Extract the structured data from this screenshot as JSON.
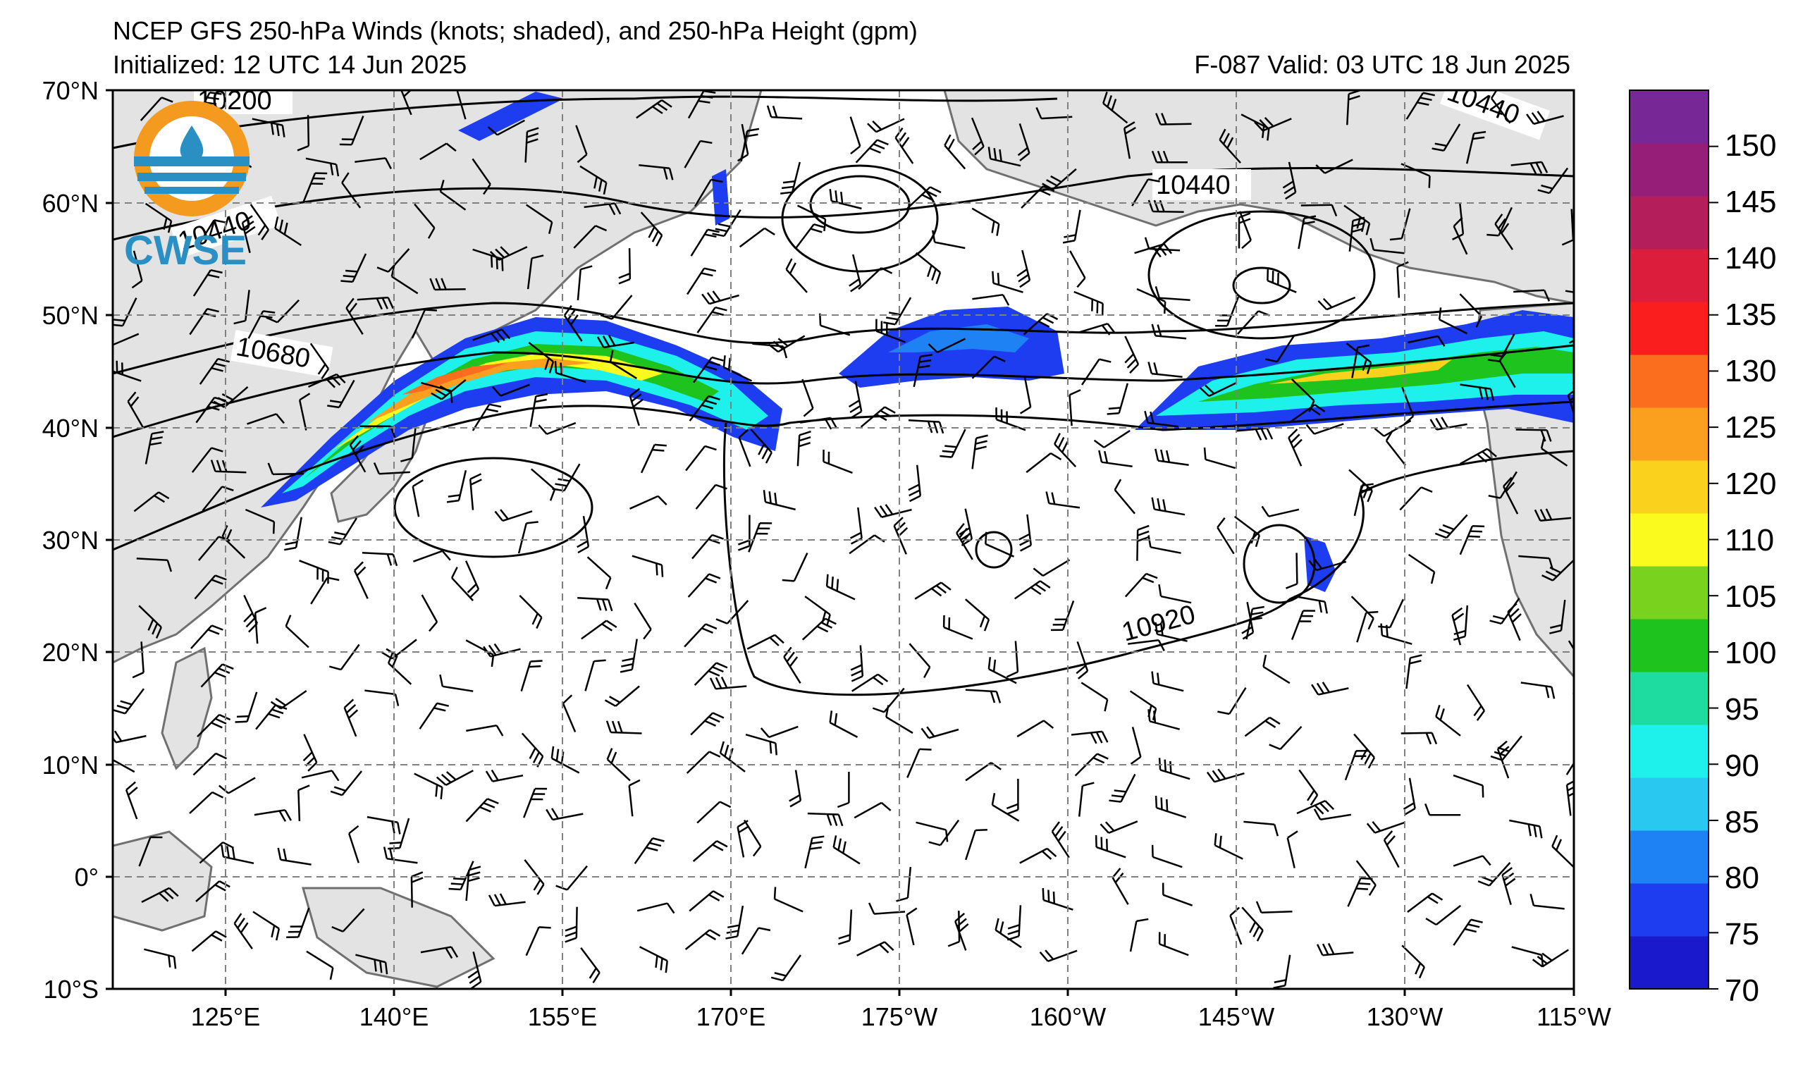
{
  "header": {
    "title": "NCEP GFS 250-hPa Winds (knots; shaded), and 250-hPa Height (gpm)",
    "initialized": "Initialized: 12 UTC 14 Jun 2025",
    "valid": "F-087  Valid: 03 UTC 18 Jun 2025"
  },
  "logo": {
    "text": "CWSE"
  },
  "map": {
    "lat_labels": [
      "70°N",
      "60°N",
      "50°N",
      "40°N",
      "30°N",
      "20°N",
      "10°N",
      "0°",
      "10°S"
    ],
    "lon_labels": [
      "125°E",
      "140°E",
      "155°E",
      "170°E",
      "175°W",
      "160°W",
      "145°W",
      "130°W",
      "115°W"
    ],
    "contour_labels": [
      "10200",
      "10440",
      "10680",
      "10440",
      "10440",
      "10920"
    ],
    "colors": {
      "land": "#e3e3e3",
      "coast": "#707070",
      "contour": "#000000",
      "grid": "#808080"
    }
  },
  "colorbar": {
    "labels": [
      "70",
      "75",
      "80",
      "85",
      "90",
      "95",
      "100",
      "105",
      "110",
      "120",
      "125",
      "130",
      "135",
      "140",
      "145",
      "150"
    ],
    "colors": [
      "#1a1acc",
      "#1e3cf0",
      "#1e82f5",
      "#28c8f0",
      "#1ef0ec",
      "#1edca0",
      "#1ec31e",
      "#78d21e",
      "#fafa1e",
      "#fad21e",
      "#faa01e",
      "#fa6e1e",
      "#fa1e1e",
      "#dc1e3c",
      "#b41e5a",
      "#961e78",
      "#782896"
    ]
  }
}
